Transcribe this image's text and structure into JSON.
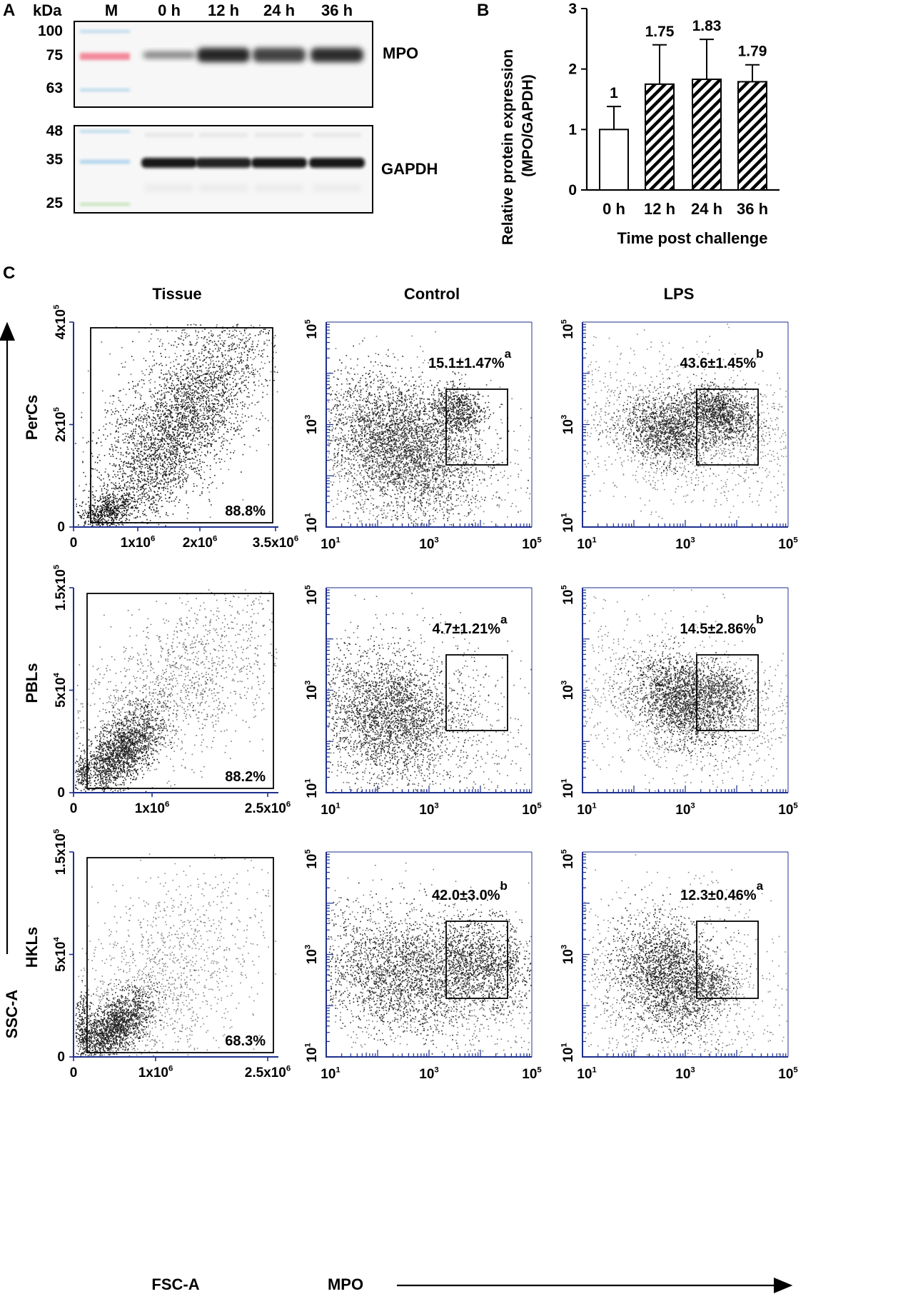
{
  "panel_labels": {
    "a": "A",
    "b": "B",
    "c": "C"
  },
  "blot": {
    "kda_label": "kDa",
    "marker_label": "M",
    "lanes": [
      "0 h",
      "12 h",
      "24 h",
      "36 h"
    ],
    "mpo_markers": [
      "100",
      "75",
      "63"
    ],
    "gapdh_markers": [
      "48",
      "35",
      "25"
    ],
    "mpo_label": "MPO",
    "gapdh_label": "GAPDH",
    "mpo_intensity": [
      0.45,
      1.0,
      0.85,
      0.98
    ],
    "gapdh_intensity": [
      0.95,
      0.9,
      0.95,
      0.95
    ]
  },
  "chart_data": [
    {
      "type": "bar",
      "title": "",
      "categories": [
        "0 h",
        "12 h",
        "24 h",
        "36 h"
      ],
      "values": [
        1,
        1.75,
        1.83,
        1.79
      ],
      "errors": [
        0.38,
        0.65,
        0.66,
        0.28
      ],
      "value_labels": [
        "1",
        "1.75",
        "1.83",
        "1.79"
      ],
      "hatched": [
        false,
        true,
        true,
        true
      ],
      "xlabel": "Time post challenge",
      "ylabel_line1": "Relative protein expression",
      "ylabel_line2": "(MPO/GAPDH)",
      "ylim": [
        0,
        3
      ],
      "yticks": [
        "0",
        "1",
        "2",
        "3"
      ]
    },
    {
      "type": "scatter",
      "description": "flow cytometry dot plots",
      "columns": [
        "Tissue",
        "Control",
        "LPS"
      ],
      "rows": [
        "PerCs",
        "PBLs",
        "HKLs"
      ],
      "gates_fsc_ssc": [
        "88.8%",
        "88.2%",
        "68.3%"
      ],
      "fsc_ticks": [
        [
          "0",
          "1x10",
          "2x10",
          "3.5x10"
        ],
        [
          "0",
          "1x10",
          "2.5x10"
        ],
        [
          "0",
          "1x10",
          "2.5x10"
        ]
      ],
      "fsc_exps": [
        [
          "",
          "6",
          "6",
          "6"
        ],
        [
          "",
          "6",
          "6"
        ],
        [
          "",
          "6",
          "6"
        ]
      ],
      "ssc_ticks": [
        [
          "0",
          "2x10",
          "4x10"
        ],
        [
          "0",
          "5x10",
          "1.5x10"
        ],
        [
          "0",
          "5x10",
          "1.5x10"
        ]
      ],
      "ssc_exps": [
        [
          "",
          "5",
          "5"
        ],
        [
          "",
          "4",
          "5"
        ],
        [
          "",
          "4",
          "5"
        ]
      ],
      "mpo_gates": [
        {
          "control": "15.1±1.47%",
          "control_sup": "a",
          "lps": "43.6±1.45%",
          "lps_sup": "b"
        },
        {
          "control": "4.7±1.21%",
          "control_sup": "a",
          "lps": "14.5±2.86%",
          "lps_sup": "b"
        },
        {
          "control": "42.0±3.0%",
          "control_sup": "b",
          "lps": "12.3±0.46%",
          "lps_sup": "a"
        }
      ],
      "log_base": "10",
      "log_exps": [
        "1",
        "3",
        "5"
      ],
      "xlabel_fsc": "FSC-A",
      "ylabel_ssc": "SSC-A",
      "xlabel_mpo": "MPO"
    }
  ]
}
